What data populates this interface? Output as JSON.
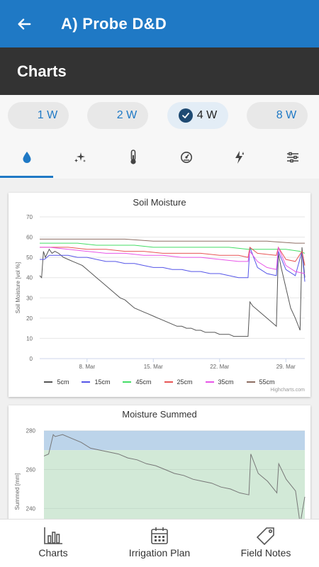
{
  "header": {
    "title": "A) Probe D&D",
    "back_icon": "arrow-left-icon"
  },
  "section": {
    "title": "Charts"
  },
  "ranges": [
    {
      "label": "1 W",
      "selected": false
    },
    {
      "label": "2 W",
      "selected": false
    },
    {
      "label": "4 W",
      "selected": true
    },
    {
      "label": "8 W",
      "selected": false
    }
  ],
  "tabs": [
    {
      "icon": "water-drop-icon",
      "active": true
    },
    {
      "icon": "sparkles-icon",
      "active": false
    },
    {
      "icon": "thermometer-icon",
      "active": false
    },
    {
      "icon": "gauge-icon",
      "active": false
    },
    {
      "icon": "lightning-icon",
      "active": false
    },
    {
      "icon": "sliders-icon",
      "active": false
    }
  ],
  "chart_data": [
    {
      "type": "line",
      "title": "Soil Moisture",
      "ylabel": "Soil Moisture [vol %]",
      "ylim": [
        0,
        70
      ],
      "yticks": [
        "0",
        "10",
        "20",
        "30",
        "40",
        "50",
        "60",
        "70"
      ],
      "xlim": [
        3,
        31
      ],
      "xticks": [
        {
          "x": 8,
          "label": "8. Mar"
        },
        {
          "x": 15,
          "label": "15. Mar"
        },
        {
          "x": 22,
          "label": "22. Mar"
        },
        {
          "x": 29,
          "label": "29. Mar"
        }
      ],
      "grid": true,
      "legend": "bottom",
      "credit": "Highcharts.com",
      "series": [
        {
          "name": "5cm",
          "color": "#555555",
          "x": [
            3,
            3.2,
            3.4,
            3.6,
            4,
            4.3,
            4.6,
            5,
            5.5,
            6,
            6.5,
            7,
            7.5,
            8,
            8.5,
            9,
            9.5,
            10,
            10.5,
            11,
            11.5,
            12,
            12.5,
            13,
            13.5,
            14,
            14.5,
            15,
            15.5,
            16,
            16.5,
            17,
            17.5,
            18,
            18.5,
            19,
            19.5,
            20,
            20.5,
            21,
            21.5,
            22,
            22.5,
            23,
            23.5,
            24,
            24.5,
            25,
            25.2,
            25.5,
            26,
            26.5,
            27,
            27.5,
            28,
            28.2,
            28.5,
            29,
            29.5,
            30,
            30.5,
            30.7,
            31
          ],
          "y": [
            41,
            40,
            53,
            50,
            54,
            52,
            53,
            52,
            50,
            49,
            48,
            47,
            46,
            44,
            42,
            40,
            38,
            36,
            34,
            32,
            30,
            29,
            27,
            25,
            24,
            23,
            22,
            21,
            20,
            19,
            18,
            17,
            16,
            16,
            15,
            15,
            14,
            14,
            13,
            13,
            13,
            12,
            12,
            12,
            11,
            11,
            11,
            11,
            28,
            26,
            24,
            22,
            20,
            18,
            16,
            52,
            45,
            35,
            25,
            20,
            14,
            55,
            40
          ]
        },
        {
          "name": "15cm",
          "color": "#5555e8",
          "x": [
            3,
            3.5,
            4,
            5,
            6,
            7,
            8,
            9,
            10,
            11,
            12,
            13,
            14,
            15,
            16,
            17,
            18,
            19,
            20,
            21,
            22,
            23,
            24,
            25,
            25.2,
            26,
            27,
            28,
            28.2,
            29,
            30,
            30.7,
            31
          ],
          "y": [
            49,
            49,
            51,
            51,
            51,
            50,
            50,
            49,
            48,
            48,
            47,
            47,
            46,
            45,
            45,
            44,
            44,
            43,
            43,
            42,
            42,
            41,
            40,
            40,
            55,
            45,
            42,
            41,
            53,
            44,
            41,
            53,
            38
          ]
        },
        {
          "name": "45cm",
          "color": "#44dd66",
          "x": [
            3,
            5,
            7,
            9,
            11,
            13,
            15,
            17,
            19,
            21,
            23,
            25,
            27,
            29,
            30.5,
            31
          ],
          "y": [
            57,
            57,
            57,
            56,
            56,
            56,
            55,
            55,
            55,
            55,
            55,
            54,
            54,
            54,
            53,
            52
          ]
        },
        {
          "name": "25cm",
          "color": "#e85555",
          "x": [
            3,
            4,
            6,
            8,
            10,
            12,
            14,
            16,
            18,
            20,
            22,
            24,
            25,
            25.2,
            26,
            28,
            28.2,
            29,
            30,
            30.7,
            31
          ],
          "y": [
            55,
            55,
            55,
            54,
            54,
            53,
            53,
            52,
            52,
            52,
            51,
            51,
            50,
            55,
            52,
            51,
            55,
            49,
            48,
            53,
            46
          ]
        },
        {
          "name": "35cm",
          "color": "#e855e8",
          "x": [
            3,
            4,
            6,
            8,
            10,
            12,
            14,
            16,
            18,
            20,
            22,
            24,
            25,
            25.2,
            26,
            27,
            28,
            28.2,
            29,
            30,
            31
          ],
          "y": [
            55,
            55,
            54,
            53,
            52,
            52,
            51,
            51,
            50,
            50,
            49,
            48,
            48,
            53,
            48,
            45,
            44,
            55,
            46,
            43,
            42
          ]
        },
        {
          "name": "55cm",
          "color": "#8d6e63",
          "x": [
            3,
            6,
            9,
            12,
            15,
            18,
            21,
            24,
            27,
            30,
            31
          ],
          "y": [
            59,
            59,
            59,
            59,
            58,
            58,
            58,
            58,
            58,
            57,
            57
          ]
        }
      ]
    },
    {
      "type": "area",
      "title": "Moisture Summed",
      "ylabel": "Summed [mm]",
      "ylim": [
        231,
        281
      ],
      "yticks": [
        "240",
        "260",
        "280"
      ],
      "bands": [
        {
          "from": 270,
          "to": 280,
          "color": "#bcd4ea"
        },
        {
          "from": 0,
          "to": 270,
          "color": "#d2e9d7"
        }
      ],
      "series": [
        {
          "name": "",
          "color": "#777777",
          "x": [
            3,
            3.5,
            4,
            4.2,
            5,
            6,
            7,
            8,
            9,
            10,
            11,
            12,
            13,
            14,
            15,
            16,
            17,
            18,
            19,
            20,
            21,
            22,
            23,
            24,
            25,
            25.2,
            26,
            27,
            28,
            28.2,
            29,
            30,
            30.5,
            31
          ],
          "y": [
            267,
            268,
            278,
            277,
            278,
            276,
            274,
            271,
            270,
            269,
            268,
            266,
            265,
            263,
            262,
            260,
            258,
            257,
            255,
            254,
            253,
            251,
            250,
            248,
            247,
            268,
            258,
            254,
            248,
            263,
            255,
            249,
            232,
            246
          ]
        }
      ]
    }
  ],
  "bottom_nav": [
    {
      "label": "Charts",
      "icon": "bar-chart-icon"
    },
    {
      "label": "Irrigation Plan",
      "icon": "calendar-icon"
    },
    {
      "label": "Field Notes",
      "icon": "tag-icon"
    }
  ]
}
